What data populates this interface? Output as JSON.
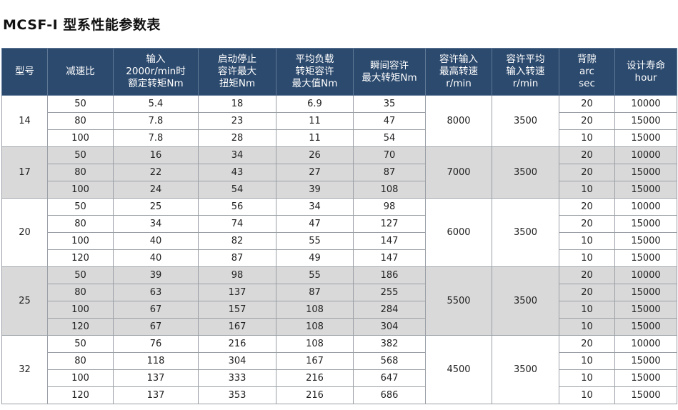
{
  "title": "MCSF-I 型系性能参数表",
  "headers": [
    [
      "型号"
    ],
    [
      "减速比"
    ],
    [
      "输入",
      "2000r/min时",
      "额定转矩Nm"
    ],
    [
      "启动停止",
      "容许最大",
      "扭矩Nm"
    ],
    [
      "平均负载",
      "转矩容许",
      "最大值Nm"
    ],
    [
      "瞬间容许",
      "最大转矩Nm"
    ],
    [
      "容许输入",
      "最高转速",
      "r/min"
    ],
    [
      "容许平均",
      "输入转速",
      "r/min"
    ],
    [
      "背隙",
      "arc",
      "sec"
    ],
    [
      "设计寿命",
      "hour"
    ]
  ],
  "groups": [
    {
      "model": "14",
      "max_speed": "8000",
      "avg_speed": "3500",
      "rows": [
        [
          "50",
          "5.4",
          "18",
          "6.9",
          "35",
          "20",
          "10000"
        ],
        [
          "80",
          "7.8",
          "23",
          "11",
          "47",
          "20",
          "15000"
        ],
        [
          "100",
          "7.8",
          "28",
          "11",
          "54",
          "10",
          "15000"
        ]
      ]
    },
    {
      "model": "17",
      "max_speed": "7000",
      "avg_speed": "3500",
      "rows": [
        [
          "50",
          "16",
          "34",
          "26",
          "70",
          "20",
          "10000"
        ],
        [
          "80",
          "22",
          "43",
          "27",
          "87",
          "20",
          "15000"
        ],
        [
          "100",
          "24",
          "54",
          "39",
          "108",
          "10",
          "15000"
        ]
      ]
    },
    {
      "model": "20",
      "max_speed": "6000",
      "avg_speed": "3500",
      "rows": [
        [
          "50",
          "25",
          "56",
          "34",
          "98",
          "20",
          "10000"
        ],
        [
          "80",
          "34",
          "74",
          "47",
          "127",
          "20",
          "15000"
        ],
        [
          "100",
          "40",
          "82",
          "55",
          "147",
          "10",
          "15000"
        ],
        [
          "120",
          "40",
          "87",
          "49",
          "147",
          "10",
          "15000"
        ]
      ]
    },
    {
      "model": "25",
      "max_speed": "5500",
      "avg_speed": "3500",
      "rows": [
        [
          "50",
          "39",
          "98",
          "55",
          "186",
          "20",
          "10000"
        ],
        [
          "80",
          "63",
          "137",
          "87",
          "255",
          "20",
          "15000"
        ],
        [
          "100",
          "67",
          "157",
          "108",
          "284",
          "10",
          "15000"
        ],
        [
          "120",
          "67",
          "167",
          "108",
          "304",
          "10",
          "15000"
        ]
      ]
    },
    {
      "model": "32",
      "max_speed": "4500",
      "avg_speed": "3500",
      "rows": [
        [
          "50",
          "76",
          "216",
          "108",
          "382",
          "20",
          "10000"
        ],
        [
          "80",
          "118",
          "304",
          "167",
          "568",
          "10",
          "15000"
        ],
        [
          "100",
          "137",
          "333",
          "216",
          "647",
          "10",
          "15000"
        ],
        [
          "120",
          "137",
          "353",
          "216",
          "686",
          "10",
          "15000"
        ]
      ]
    }
  ]
}
